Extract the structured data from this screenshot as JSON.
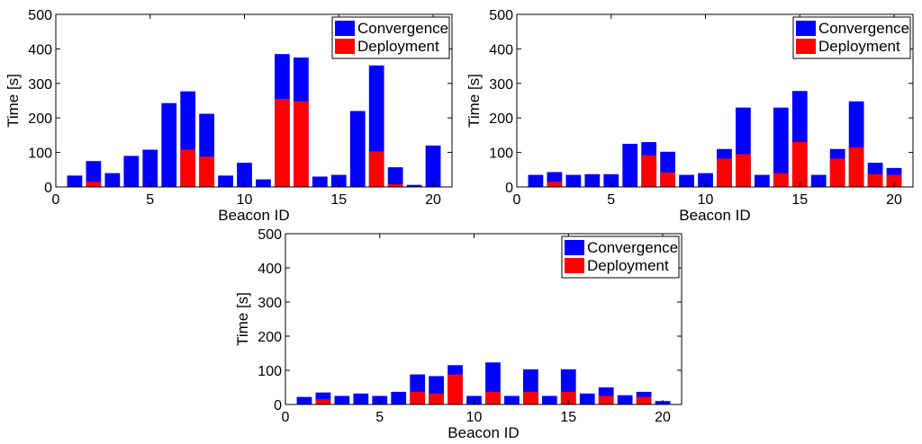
{
  "colors": {
    "convergence": "#0000ff",
    "deployment": "#ff0000"
  },
  "chart_data": [
    {
      "type": "bar",
      "stacking": "overlay",
      "title": "",
      "xlabel": "Beacon ID",
      "ylabel": "Time [s]",
      "xlim": [
        0,
        21
      ],
      "ylim": [
        0,
        500
      ],
      "xticks": [
        0,
        5,
        10,
        15,
        20
      ],
      "yticks": [
        0,
        100,
        200,
        300,
        400,
        500
      ],
      "legend_position": "top-right",
      "categories": [
        1,
        2,
        3,
        4,
        5,
        6,
        7,
        8,
        9,
        10,
        11,
        12,
        13,
        14,
        15,
        16,
        17,
        18,
        19,
        20
      ],
      "series": [
        {
          "name": "Convergence",
          "values": [
            33,
            75,
            40,
            90,
            108,
            243,
            277,
            212,
            33,
            70,
            22,
            385,
            375,
            30,
            35,
            220,
            352,
            57,
            6,
            120
          ]
        },
        {
          "name": "Deployment",
          "values": [
            0,
            15,
            0,
            0,
            0,
            0,
            108,
            88,
            0,
            0,
            0,
            255,
            248,
            0,
            0,
            0,
            103,
            8,
            0,
            0
          ]
        }
      ]
    },
    {
      "type": "bar",
      "stacking": "overlay",
      "title": "",
      "xlabel": "Beacon ID",
      "ylabel": "Time [s]",
      "xlim": [
        0,
        21
      ],
      "ylim": [
        0,
        500
      ],
      "xticks": [
        0,
        5,
        10,
        15,
        20
      ],
      "yticks": [
        0,
        100,
        200,
        300,
        400,
        500
      ],
      "legend_position": "top-right",
      "categories": [
        1,
        2,
        3,
        4,
        5,
        6,
        7,
        8,
        9,
        10,
        11,
        12,
        13,
        14,
        15,
        16,
        17,
        18,
        19,
        20
      ],
      "series": [
        {
          "name": "Convergence",
          "values": [
            35,
            43,
            35,
            37,
            37,
            125,
            130,
            102,
            35,
            40,
            110,
            230,
            35,
            230,
            278,
            35,
            110,
            248,
            70,
            55
          ]
        },
        {
          "name": "Deployment",
          "values": [
            0,
            15,
            0,
            0,
            0,
            0,
            92,
            42,
            0,
            0,
            82,
            95,
            0,
            40,
            130,
            0,
            82,
            115,
            37,
            35
          ]
        }
      ]
    },
    {
      "type": "bar",
      "stacking": "overlay",
      "title": "",
      "xlabel": "Beacon ID",
      "ylabel": "Time [s]",
      "xlim": [
        0,
        21
      ],
      "ylim": [
        0,
        500
      ],
      "xticks": [
        0,
        5,
        10,
        15,
        20
      ],
      "yticks": [
        0,
        100,
        200,
        300,
        400,
        500
      ],
      "legend_position": "top-right",
      "categories": [
        1,
        2,
        3,
        4,
        5,
        6,
        7,
        8,
        9,
        10,
        11,
        12,
        13,
        14,
        15,
        16,
        17,
        18,
        19,
        20
      ],
      "series": [
        {
          "name": "Convergence",
          "values": [
            22,
            35,
            25,
            32,
            25,
            37,
            88,
            83,
            115,
            25,
            123,
            25,
            103,
            25,
            103,
            32,
            50,
            27,
            37,
            10
          ]
        },
        {
          "name": "Deployment",
          "values": [
            0,
            15,
            0,
            0,
            0,
            0,
            37,
            32,
            88,
            0,
            37,
            0,
            37,
            0,
            37,
            0,
            25,
            0,
            22,
            0
          ]
        }
      ]
    }
  ]
}
